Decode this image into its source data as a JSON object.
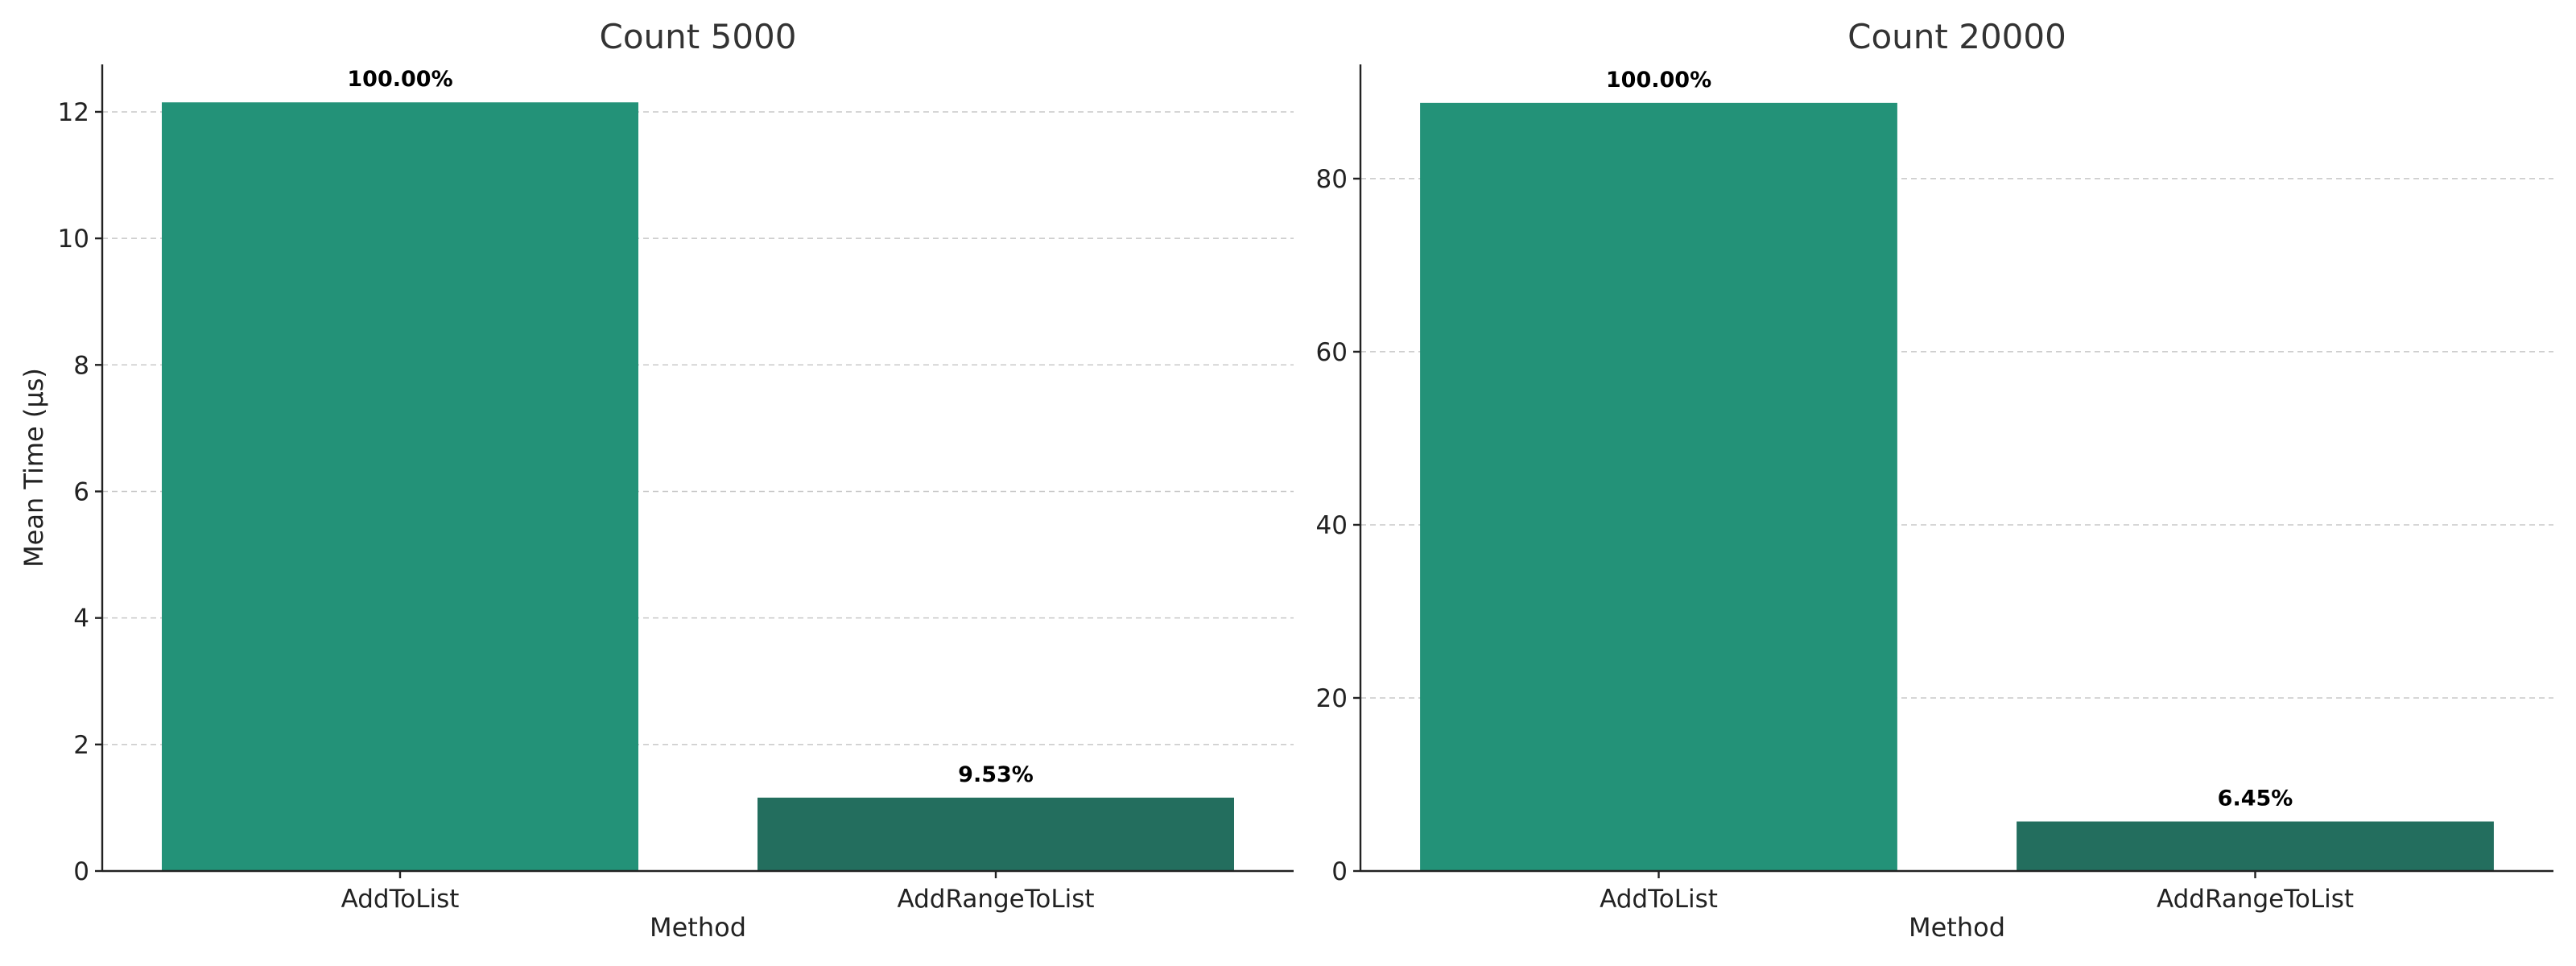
{
  "chart_data": [
    {
      "type": "bar",
      "title": "Count 5000",
      "xlabel": "Method",
      "ylabel": "Mean Time (μs)",
      "categories": [
        "AddToList",
        "AddRangeToList"
      ],
      "values": [
        12.15,
        1.16
      ],
      "bar_labels": [
        "100.00%",
        "9.53%"
      ],
      "colors": [
        "#239278",
        "#236e5e"
      ],
      "ylim": [
        0,
        12.75
      ],
      "yticks": [
        0,
        2,
        4,
        6,
        8,
        10,
        12
      ],
      "grid": true
    },
    {
      "type": "bar",
      "title": "Count 20000",
      "xlabel": "Method",
      "ylabel": "",
      "categories": [
        "AddToList",
        "AddRangeToList"
      ],
      "values": [
        88.75,
        5.72
      ],
      "bar_labels": [
        "100.00%",
        "6.45%"
      ],
      "colors": [
        "#239278",
        "#236e5e"
      ],
      "ylim": [
        0,
        93.2
      ],
      "yticks": [
        0,
        20,
        40,
        60,
        80
      ],
      "grid": true
    }
  ]
}
